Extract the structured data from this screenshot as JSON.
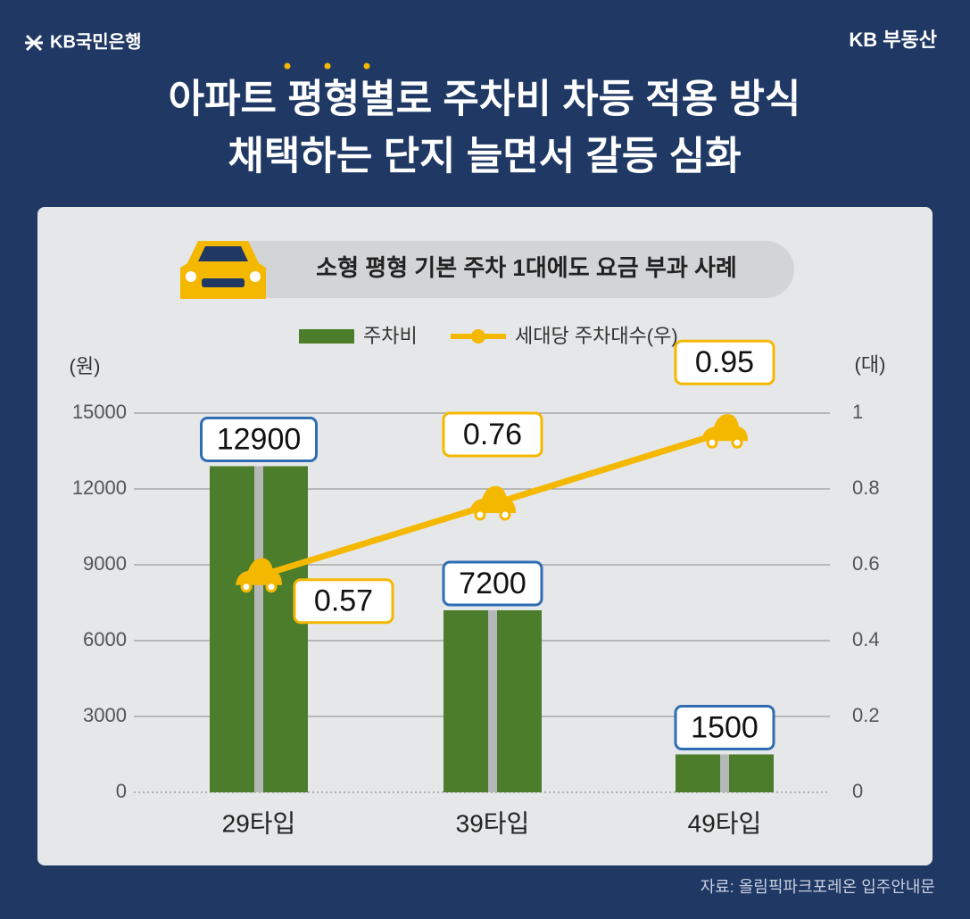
{
  "chart_data": {
    "type": "bar",
    "brand": "KB국민은행",
    "service": "KB 부동산",
    "title": [
      "아파트 평형별로 주차비 차등 적용 방식",
      "채택하는 단지 늘면서 갈등 심화"
    ],
    "subtitle": "소형 평형 기본 주차 1대에도 요금 부과 사례",
    "y_label": "(원)",
    "y2_label": "(대)",
    "source": "자료: 올림픽파크포레온 입주안내문",
    "categories": [
      "29타입",
      "39타입",
      "49타입"
    ],
    "series": [
      {
        "name": "주차비",
        "color": "#4b7d2b",
        "values": [
          12900,
          7200,
          1500
        ]
      },
      {
        "name": "세대당 주차대수(우)",
        "color": "#f5b800",
        "type": "line",
        "axis": "y2",
        "values": [
          0.57,
          0.76,
          0.95
        ]
      }
    ],
    "ylim": [
      0,
      15000
    ],
    "yticks": [
      0,
      3000,
      6000,
      9000,
      12000,
      15000
    ],
    "y2lim": [
      0,
      1
    ],
    "y2ticks": [
      0,
      0.2,
      0.4,
      0.6,
      0.8,
      1
    ],
    "grid": true
  }
}
